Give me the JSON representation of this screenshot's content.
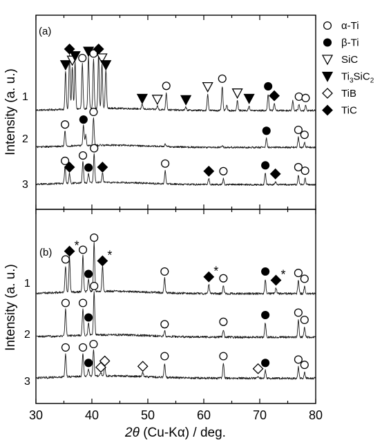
{
  "chart_data": [
    {
      "panel": "(a)",
      "type": "line",
      "xlabel_symbol": "2θ",
      "xlabel_rest": " (Cu-Kα) / deg.",
      "ylabel": "Intensity (a. u.)",
      "xlim": [
        30,
        80
      ],
      "xticks": [
        "30",
        "40",
        "50",
        "60",
        "70",
        "80"
      ],
      "series": [
        {
          "name": "1",
          "offset": 2.0,
          "peaks": [
            {
              "x": 35.3,
              "h": 0.85,
              "label": "triangle-down-filled"
            },
            {
              "x": 36.0,
              "h": 1.2,
              "label": "diamond-filled"
            },
            {
              "x": 36.5,
              "h": 0.95,
              "label": "triangle-down-open"
            },
            {
              "x": 37.0,
              "h": 1.05,
              "label": "triangle-down-filled"
            },
            {
              "x": 38.3,
              "h": 1.0,
              "label": "circle-open"
            },
            {
              "x": 39.4,
              "h": 1.15,
              "label": "triangle-down-filled"
            },
            {
              "x": 40.3,
              "h": 1.1,
              "label": "circle-open"
            },
            {
              "x": 41.2,
              "h": 1.2,
              "label": "diamond-filled"
            },
            {
              "x": 41.8,
              "h": 1.0,
              "label": "triangle-down-open"
            },
            {
              "x": 42.5,
              "h": 0.85,
              "label": "triangle-down-filled"
            },
            {
              "x": 49.0,
              "h": 0.1,
              "label": "triangle-down-filled"
            },
            {
              "x": 51.7,
              "h": 0.08,
              "label": "triangle-down-open"
            },
            {
              "x": 53.3,
              "h": 0.38,
              "label": "circle-open"
            },
            {
              "x": 56.8,
              "h": 0.07,
              "label": "triangle-down-filled"
            },
            {
              "x": 60.7,
              "h": 0.36,
              "label": "triangle-down-open"
            },
            {
              "x": 63.3,
              "h": 0.54,
              "label": "circle-open"
            },
            {
              "x": 64.1,
              "h": 0.12
            },
            {
              "x": 66.0,
              "h": 0.22,
              "label": "triangle-down-open"
            },
            {
              "x": 68.1,
              "h": 0.1,
              "label": "triangle-down-filled"
            },
            {
              "x": 71.5,
              "h": 0.37,
              "label": "circle-filled"
            },
            {
              "x": 72.6,
              "h": 0.16,
              "label": "diamond-filled"
            },
            {
              "x": 75.9,
              "h": 0.22
            },
            {
              "x": 77.0,
              "h": 0.14,
              "label": "circle-open"
            },
            {
              "x": 78.2,
              "h": 0.11,
              "label": "circle-open"
            }
          ]
        },
        {
          "name": "2",
          "offset": 1.18,
          "peaks": [
            {
              "x": 35.2,
              "h": 0.34,
              "label": "circle-open"
            },
            {
              "x": 38.5,
              "h": 0.45,
              "label": "circle-filled"
            },
            {
              "x": 38.9,
              "h": 0.23
            },
            {
              "x": 40.3,
              "h": 0.62,
              "label": "circle-open"
            },
            {
              "x": 53.1,
              "h": 0.05
            },
            {
              "x": 63.3,
              "h": 0.04
            },
            {
              "x": 71.2,
              "h": 0.2,
              "label": "circle-filled"
            },
            {
              "x": 76.9,
              "h": 0.22,
              "label": "circle-open"
            },
            {
              "x": 78.0,
              "h": 0.11,
              "label": "circle-open"
            }
          ]
        },
        {
          "name": "3",
          "offset": 0.35,
          "peaks": [
            {
              "x": 35.2,
              "h": 0.36,
              "label": "circle-open"
            },
            {
              "x": 36.0,
              "h": 0.22,
              "label": "diamond-filled"
            },
            {
              "x": 38.4,
              "h": 0.48,
              "label": "circle-open"
            },
            {
              "x": 39.4,
              "h": 0.21,
              "label": "circle-filled"
            },
            {
              "x": 40.4,
              "h": 0.64,
              "label": "circle-open"
            },
            {
              "x": 41.9,
              "h": 0.22,
              "label": "diamond-filled"
            },
            {
              "x": 53.1,
              "h": 0.3,
              "label": "circle-open"
            },
            {
              "x": 60.9,
              "h": 0.13,
              "label": "diamond-filled"
            },
            {
              "x": 63.5,
              "h": 0.13,
              "label": "circle-open"
            },
            {
              "x": 71.0,
              "h": 0.26,
              "label": "circle-filled"
            },
            {
              "x": 72.8,
              "h": 0.07,
              "label": "diamond-filled"
            },
            {
              "x": 76.9,
              "h": 0.22,
              "label": "circle-open"
            },
            {
              "x": 78.1,
              "h": 0.14,
              "label": "circle-open"
            }
          ]
        }
      ]
    },
    {
      "panel": "(b)",
      "type": "line",
      "xlabel_symbol": "2θ",
      "xlabel_rest": " (Cu-Kα) / deg.",
      "ylabel": "Intensity (a. u.)",
      "xlim": [
        30,
        80
      ],
      "xticks": [
        "30",
        "40",
        "50",
        "60",
        "70",
        "80"
      ],
      "series": [
        {
          "name": "1",
          "offset": 2.1,
          "peaks": [
            {
              "x": 35.3,
              "h": 0.55,
              "label": "circle-open"
            },
            {
              "x": 36.0,
              "h": 0.72,
              "label": "diamond-filled",
              "star": true
            },
            {
              "x": 38.4,
              "h": 0.75,
              "label": "circle-open"
            },
            {
              "x": 39.4,
              "h": 0.25,
              "label": "circle-filled"
            },
            {
              "x": 40.4,
              "h": 1.0,
              "label": "circle-open"
            },
            {
              "x": 41.9,
              "h": 0.52,
              "label": "diamond-filled",
              "star": true
            },
            {
              "x": 53.0,
              "h": 0.3,
              "label": "circle-open"
            },
            {
              "x": 60.9,
              "h": 0.19,
              "label": "diamond-filled",
              "star": true
            },
            {
              "x": 63.5,
              "h": 0.16,
              "label": "circle-open"
            },
            {
              "x": 71.0,
              "h": 0.3,
              "label": "circle-filled"
            },
            {
              "x": 72.9,
              "h": 0.12,
              "label": "diamond-filled",
              "star": true
            },
            {
              "x": 76.9,
              "h": 0.27,
              "label": "circle-open"
            },
            {
              "x": 78.0,
              "h": 0.15,
              "label": "circle-open"
            }
          ]
        },
        {
          "name": "2",
          "offset": 1.2,
          "peaks": [
            {
              "x": 35.3,
              "h": 0.55,
              "label": "circle-open"
            },
            {
              "x": 38.4,
              "h": 0.55,
              "label": "circle-open"
            },
            {
              "x": 39.4,
              "h": 0.25,
              "label": "circle-filled"
            },
            {
              "x": 40.4,
              "h": 0.9,
              "label": "circle-open"
            },
            {
              "x": 53.0,
              "h": 0.11,
              "label": "circle-open"
            },
            {
              "x": 63.5,
              "h": 0.16,
              "label": "circle-open"
            },
            {
              "x": 71.0,
              "h": 0.3,
              "label": "circle-filled"
            },
            {
              "x": 76.9,
              "h": 0.35,
              "label": "circle-open"
            },
            {
              "x": 78.0,
              "h": 0.2,
              "label": "circle-open"
            }
          ]
        },
        {
          "name": "3",
          "offset": 0.35,
          "peaks": [
            {
              "x": 35.3,
              "h": 0.48,
              "label": "circle-open"
            },
            {
              "x": 38.4,
              "h": 0.48,
              "label": "circle-open"
            },
            {
              "x": 39.4,
              "h": 0.16,
              "label": "circle-filled"
            },
            {
              "x": 40.3,
              "h": 0.55,
              "label": "circle-open"
            },
            {
              "x": 41.6,
              "h": 0.07,
              "label": "diamond-open"
            },
            {
              "x": 42.3,
              "h": 0.2,
              "label": "diamond-open"
            },
            {
              "x": 49.1,
              "h": 0.09,
              "label": "diamond-open"
            },
            {
              "x": 53.0,
              "h": 0.3,
              "label": "circle-open"
            },
            {
              "x": 63.5,
              "h": 0.3,
              "label": "circle-open"
            },
            {
              "x": 69.7,
              "h": 0.04,
              "label": "diamond-open"
            },
            {
              "x": 71.0,
              "h": 0.16,
              "label": "circle-filled"
            },
            {
              "x": 76.9,
              "h": 0.23,
              "label": "circle-open"
            },
            {
              "x": 78.0,
              "h": 0.12,
              "label": "circle-open"
            }
          ]
        }
      ]
    }
  ],
  "legend": [
    {
      "marker": "circle-open",
      "name": "α-Ti"
    },
    {
      "marker": "circle-filled",
      "name": "β-Ti"
    },
    {
      "marker": "triangle-down-open",
      "name": "SiC"
    },
    {
      "marker": "triangle-down-filled",
      "name_main": "Ti",
      "sub1": "3",
      "name_mid": "SiC",
      "sub2": "2"
    },
    {
      "marker": "diamond-open",
      "name": "TiB"
    },
    {
      "marker": "diamond-filled",
      "name": "TiC"
    }
  ],
  "star_text": "*"
}
